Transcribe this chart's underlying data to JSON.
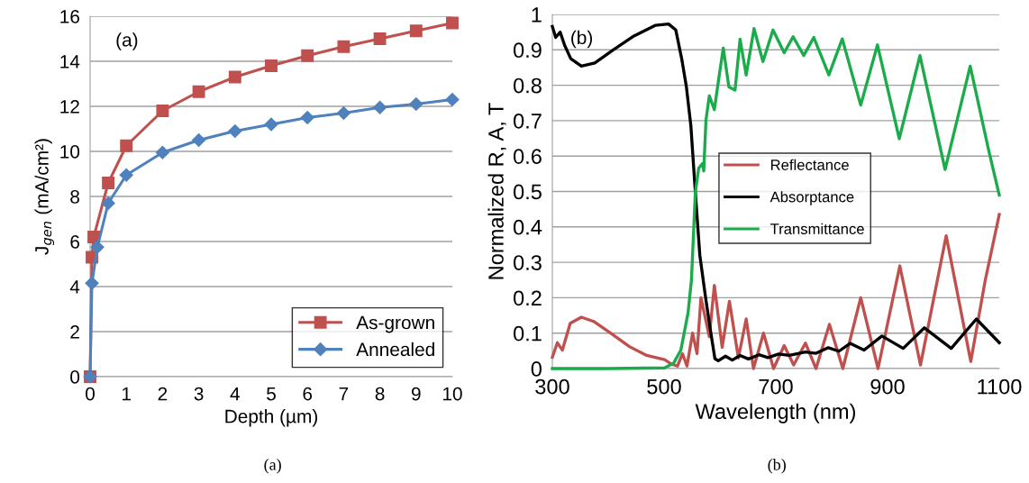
{
  "chart_data": [
    {
      "type": "line",
      "xlabel": "Depth (µm)",
      "ylabel": "J$_{gen}$ (mA/cm²)",
      "xlim": [
        0,
        10
      ],
      "xticks": [
        0,
        1,
        2,
        3,
        4,
        5,
        6,
        7,
        8,
        9,
        10
      ],
      "ylim": [
        0,
        16
      ],
      "yticks": [
        0,
        2,
        4,
        6,
        8,
        10,
        12,
        14,
        16
      ],
      "grid": "y",
      "legend": "bottom right",
      "annotations": [
        "(a)",
        "(a)"
      ],
      "series": [
        {
          "name": "As-grown",
          "color": "#c0504d",
          "marker": "square",
          "x": [
            0,
            0.05,
            0.1,
            0.5,
            1,
            2,
            3,
            4,
            5,
            6,
            7,
            8,
            9,
            10
          ],
          "values": [
            0,
            5.3,
            6.2,
            8.6,
            10.25,
            11.8,
            12.65,
            13.3,
            13.8,
            14.25,
            14.65,
            15.0,
            15.35,
            15.7
          ]
        },
        {
          "name": "Annealed",
          "color": "#4f81bd",
          "marker": "diamond",
          "x": [
            0,
            0.05,
            0.2,
            0.5,
            1,
            2,
            3,
            4,
            5,
            6,
            7,
            8,
            9,
            10
          ],
          "values": [
            0,
            4.15,
            5.75,
            7.7,
            8.95,
            9.95,
            10.5,
            10.9,
            11.2,
            11.5,
            11.7,
            11.95,
            12.1,
            12.3
          ]
        }
      ]
    },
    {
      "type": "line",
      "xlabel": "Wavelength (nm)",
      "ylabel": "Normalized R, A, T",
      "xlim": [
        300,
        1100
      ],
      "xticks": [
        300,
        500,
        700,
        900,
        1100
      ],
      "ylim": [
        0,
        1
      ],
      "yticks": [
        0,
        0.1,
        0.2,
        0.3,
        0.4,
        0.5,
        0.6,
        0.7,
        0.8,
        0.9,
        1
      ],
      "grid": "y",
      "legend": "center",
      "annotations": [
        "(b)",
        "(b)"
      ],
      "series": [
        {
          "name": "Reflectance",
          "color": "#c0504d",
          "marker": "none",
          "x": [
            300,
            309,
            318,
            332,
            352,
            374,
            406,
            438,
            469,
            501,
            514,
            524,
            533,
            541,
            551,
            559,
            566,
            581,
            590,
            604,
            617,
            633,
            647,
            660,
            678,
            696,
            715,
            732,
            753,
            772,
            796,
            820,
            852,
            883,
            922,
            959,
            1005,
            1049,
            1075,
            1100
          ],
          "values": [
            0.032,
            0.073,
            0.052,
            0.128,
            0.145,
            0.133,
            0.098,
            0.062,
            0.037,
            0.025,
            0.012,
            0.007,
            0.042,
            0.007,
            0.1,
            0.042,
            0.2,
            0.09,
            0.235,
            0.06,
            0.19,
            0.03,
            0.14,
            0.0,
            0.1,
            0.0,
            0.065,
            0.01,
            0.072,
            0.0,
            0.125,
            0.0,
            0.2,
            0.0,
            0.29,
            0.01,
            0.375,
            0.02,
            0.25,
            0.435
          ]
        },
        {
          "name": "Absorptance",
          "color": "#000000",
          "marker": "none",
          "x": [
            300,
            306,
            314,
            322,
            333,
            352,
            376,
            409,
            446,
            484,
            508,
            521,
            532,
            540,
            548,
            556,
            564,
            575,
            583,
            591,
            597,
            610,
            622,
            636,
            651,
            670,
            686,
            705,
            724,
            753,
            772,
            794,
            813,
            833,
            858,
            890,
            928,
            966,
            1014,
            1059,
            1100
          ],
          "values": [
            0.966,
            0.935,
            0.95,
            0.913,
            0.875,
            0.854,
            0.863,
            0.9,
            0.939,
            0.969,
            0.973,
            0.956,
            0.871,
            0.795,
            0.685,
            0.498,
            0.32,
            0.193,
            0.108,
            0.028,
            0.022,
            0.035,
            0.024,
            0.037,
            0.027,
            0.039,
            0.031,
            0.041,
            0.037,
            0.047,
            0.043,
            0.059,
            0.049,
            0.071,
            0.052,
            0.092,
            0.057,
            0.115,
            0.057,
            0.14,
            0.073
          ]
        },
        {
          "name": "Transmittance",
          "color": "#1aab4a",
          "marker": "none",
          "x": [
            300,
            400,
            501,
            517,
            530,
            543,
            549,
            556,
            562,
            569,
            571,
            575,
            581,
            590,
            598,
            606,
            616,
            627,
            636,
            647,
            661,
            677,
            695,
            715,
            731,
            750,
            768,
            795,
            819,
            852,
            882,
            921,
            958,
            1003,
            1048,
            1081,
            1100
          ],
          "values": [
            0,
            0,
            0.002,
            0.015,
            0.052,
            0.158,
            0.25,
            0.498,
            0.566,
            0.579,
            0.558,
            0.702,
            0.77,
            0.731,
            0.82,
            0.905,
            0.795,
            0.786,
            0.93,
            0.829,
            0.96,
            0.867,
            0.956,
            0.892,
            0.937,
            0.884,
            0.935,
            0.829,
            0.931,
            0.744,
            0.914,
            0.649,
            0.884,
            0.562,
            0.854,
            0.617,
            0.49
          ]
        }
      ]
    }
  ]
}
